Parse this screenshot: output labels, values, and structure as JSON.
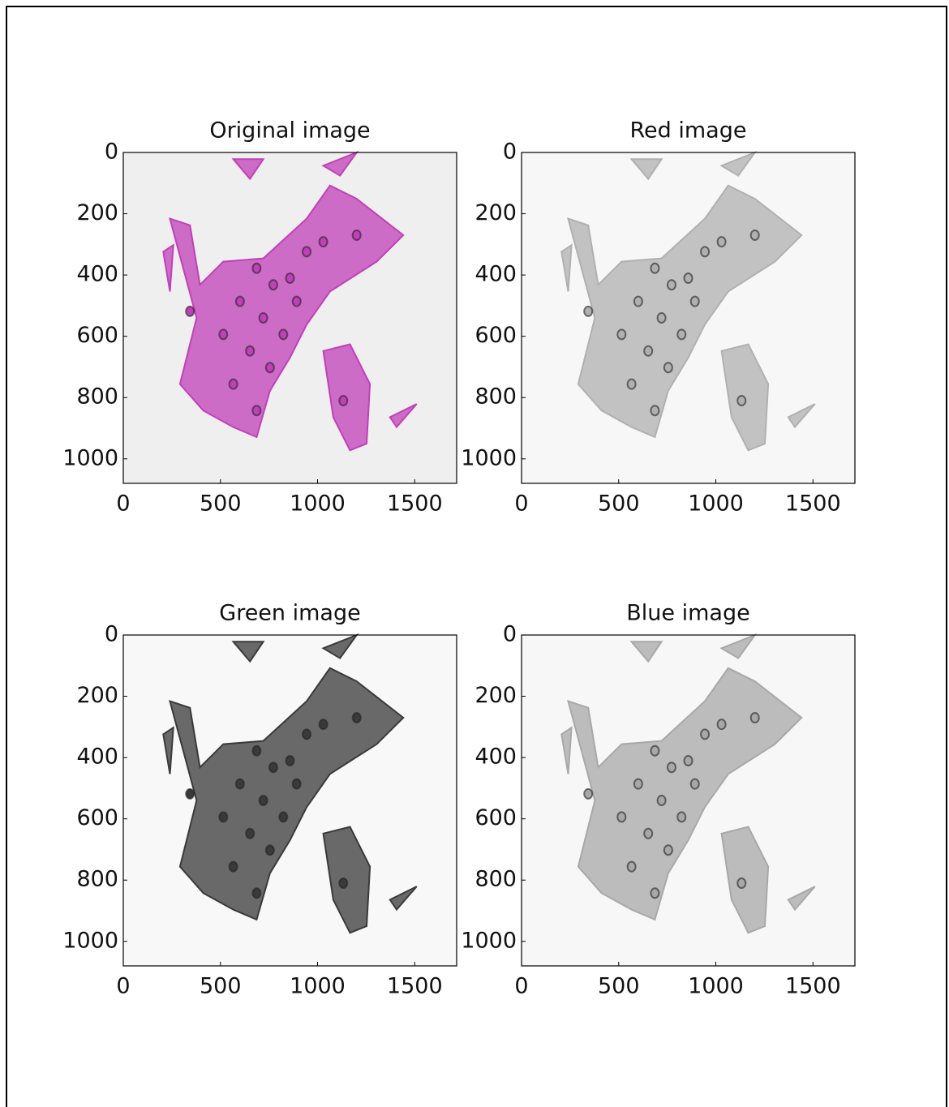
{
  "chart_data": [
    {
      "type": "image",
      "title": "Original image",
      "color": "#c040b8",
      "facecolor": "#eeefee",
      "xlim": [
        0,
        1716
      ],
      "ylim": [
        1080,
        0
      ],
      "xticks": [
        0,
        500,
        1000,
        1500
      ],
      "yticks": [
        0,
        200,
        400,
        600,
        800,
        1000
      ]
    },
    {
      "type": "image",
      "title": "Red image",
      "color": "#b0b0b0",
      "facecolor": "#f7f7f7",
      "xlim": [
        0,
        1716
      ],
      "ylim": [
        1080,
        0
      ],
      "xticks": [
        0,
        500,
        1000,
        1500
      ],
      "yticks": [
        0,
        200,
        400,
        600,
        800,
        1000
      ]
    },
    {
      "type": "image",
      "title": "Green image",
      "color": "#3a3a3a",
      "facecolor": "#f8f8f8",
      "xlim": [
        0,
        1716
      ],
      "ylim": [
        1080,
        0
      ],
      "xticks": [
        0,
        500,
        1000,
        1500
      ],
      "yticks": [
        0,
        200,
        400,
        600,
        800,
        1000
      ]
    },
    {
      "type": "image",
      "title": "Blue image",
      "color": "#a8a8a8",
      "facecolor": "#f7f7f7",
      "xlim": [
        0,
        1716
      ],
      "ylim": [
        1080,
        0
      ],
      "xticks": [
        0,
        500,
        1000,
        1500
      ],
      "yticks": [
        0,
        200,
        400,
        600,
        800,
        1000
      ]
    }
  ]
}
